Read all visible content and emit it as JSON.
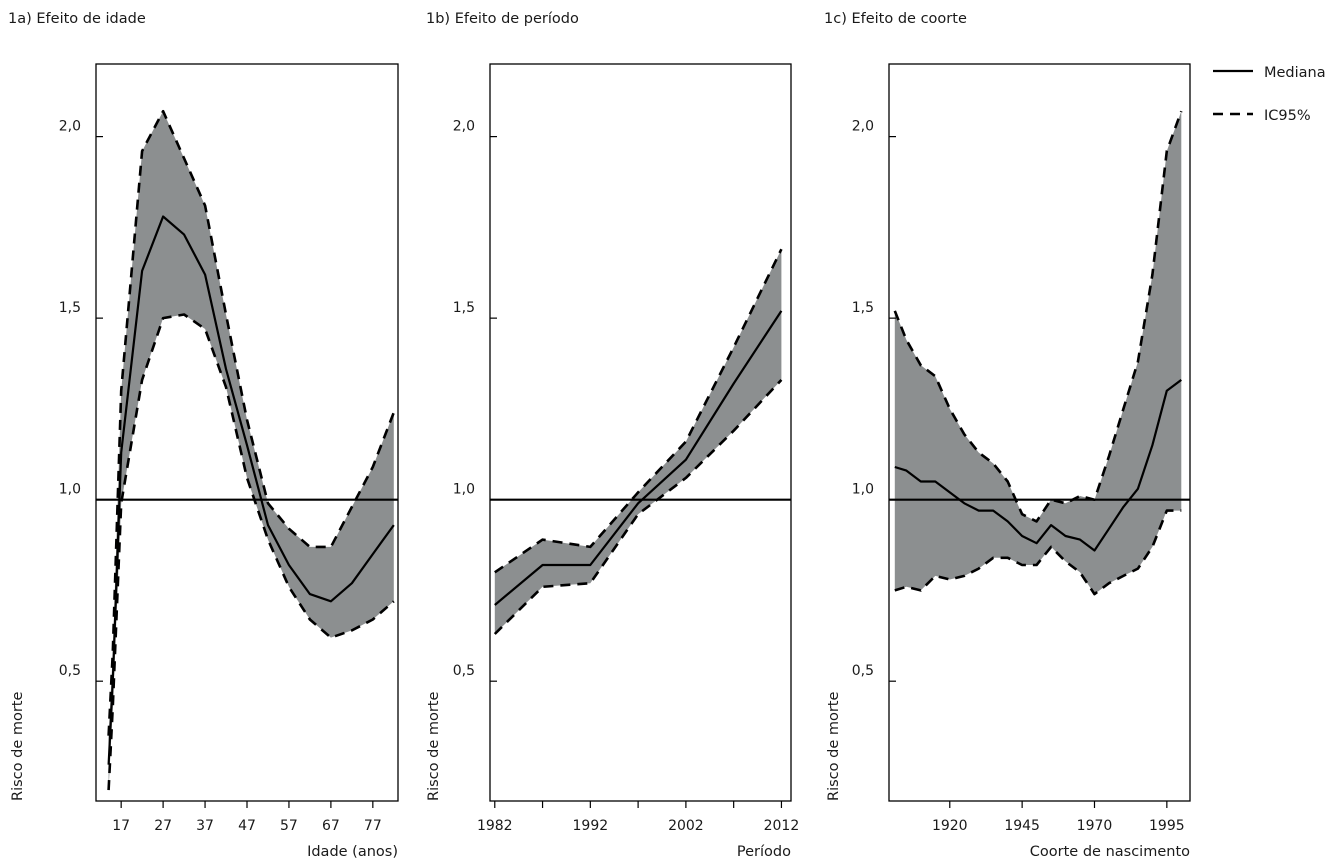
{
  "legend": {
    "median_label": "Mediana",
    "ci_label": "IC95%"
  },
  "colors": {
    "band": "#8c8f90",
    "line": "#000000",
    "background": "#ffffff"
  },
  "chart_data": [
    {
      "type": "line",
      "title": "1a) Efeito de idade",
      "xlabel": "Idade (anos)",
      "ylabel": "Risco de morte",
      "xlim": [
        11,
        83
      ],
      "ylim": [
        0.17,
        2.2
      ],
      "xticks": [
        17,
        27,
        37,
        47,
        57,
        67,
        77
      ],
      "xticklabels": [
        "17",
        "27",
        "37",
        "47",
        "57",
        "67",
        "77"
      ],
      "yticks": [
        0.5,
        1.0,
        1.5,
        2.0
      ],
      "yticklabels": [
        "0,5",
        "1,0",
        "1,5",
        "2,0"
      ],
      "reference_line": 1.0,
      "series": [
        {
          "name": "Mediana",
          "style": "solid",
          "x": [
            14,
            15,
            17,
            22,
            27,
            32,
            37,
            42,
            47,
            52,
            57,
            62,
            67,
            72,
            77,
            82
          ],
          "y": [
            0.27,
            0.5,
            1.13,
            1.63,
            1.78,
            1.73,
            1.62,
            1.36,
            1.15,
            0.93,
            0.82,
            0.74,
            0.72,
            0.77,
            0.85,
            0.93
          ]
        },
        {
          "name": "IC95%",
          "style": "dashed",
          "x": [
            14,
            15,
            17,
            22,
            27,
            32,
            37,
            42,
            47,
            52,
            57,
            62,
            67,
            72,
            77,
            82
          ],
          "y": [
            0.35,
            0.58,
            1.3,
            1.96,
            2.07,
            1.94,
            1.81,
            1.51,
            1.22,
            0.99,
            0.92,
            0.87,
            0.87,
            0.98,
            1.09,
            1.24
          ]
        },
        {
          "name": "IC95%",
          "style": "dashed",
          "x": [
            14,
            15,
            17,
            22,
            27,
            32,
            37,
            42,
            47,
            52,
            57,
            62,
            67,
            72,
            77,
            82
          ],
          "y": [
            0.2,
            0.43,
            0.99,
            1.33,
            1.5,
            1.51,
            1.47,
            1.31,
            1.06,
            0.89,
            0.76,
            0.67,
            0.62,
            0.64,
            0.67,
            0.72
          ]
        }
      ]
    },
    {
      "type": "line",
      "title": "1b) Efeito de período",
      "xlabel": "Período",
      "ylabel": "Risco de morte",
      "xlim": [
        1981.5,
        2013
      ],
      "ylim": [
        0.17,
        2.2
      ],
      "xticks": [
        1982,
        1987,
        1992,
        1997,
        2002,
        2007,
        2012
      ],
      "xticklabels": [
        "1982",
        "",
        "1992",
        "",
        "2002",
        "",
        "2012"
      ],
      "yticks": [
        0.5,
        1.0,
        1.5,
        2.0
      ],
      "yticklabels": [
        "0,5",
        "1,0",
        "1,5",
        "2,0"
      ],
      "reference_line": 1.0,
      "series": [
        {
          "name": "Mediana",
          "style": "solid",
          "x": [
            1982,
            1987,
            1992,
            1997,
            2002,
            2007,
            2012
          ],
          "y": [
            0.71,
            0.82,
            0.82,
            0.99,
            1.11,
            1.32,
            1.52
          ]
        },
        {
          "name": "IC95%",
          "style": "dashed",
          "x": [
            1982,
            1987,
            1992,
            1997,
            2002,
            2007,
            2012
          ],
          "y": [
            0.8,
            0.89,
            0.87,
            1.02,
            1.16,
            1.42,
            1.69
          ]
        },
        {
          "name": "IC95%",
          "style": "dashed",
          "x": [
            1982,
            1987,
            1992,
            1997,
            2002,
            2007,
            2012
          ],
          "y": [
            0.63,
            0.76,
            0.77,
            0.96,
            1.06,
            1.19,
            1.33
          ]
        }
      ]
    },
    {
      "type": "line",
      "title": "1c) Efeito de coorte",
      "xlabel": "Coorte de nascimento",
      "ylabel": "Risco de morte",
      "xlim": [
        1899,
        2003
      ],
      "ylim": [
        0.17,
        2.2
      ],
      "xticks": [
        1920,
        1945,
        1970,
        1995
      ],
      "xticklabels": [
        "1920",
        "1945",
        "1970",
        "1995"
      ],
      "yticks": [
        0.5,
        1.0,
        1.5,
        2.0
      ],
      "yticklabels": [
        "0,5",
        "1,0",
        "1,5",
        "2,0"
      ],
      "reference_line": 1.0,
      "series": [
        {
          "name": "Mediana",
          "style": "solid",
          "x": [
            1901,
            1905,
            1910,
            1915,
            1920,
            1925,
            1930,
            1935,
            1940,
            1945,
            1950,
            1955,
            1960,
            1965,
            1970,
            1975,
            1980,
            1985,
            1990,
            1995,
            2000
          ],
          "y": [
            1.09,
            1.08,
            1.05,
            1.05,
            1.02,
            0.99,
            0.97,
            0.97,
            0.94,
            0.9,
            0.88,
            0.93,
            0.9,
            0.89,
            0.86,
            0.92,
            0.98,
            1.03,
            1.15,
            1.3,
            1.33
          ]
        },
        {
          "name": "IC95%",
          "style": "dashed",
          "x": [
            1901,
            1905,
            1910,
            1915,
            1920,
            1925,
            1930,
            1935,
            1940,
            1945,
            1950,
            1955,
            1960,
            1965,
            1970,
            1975,
            1980,
            1985,
            1990,
            1995,
            2000
          ],
          "y": [
            1.52,
            1.44,
            1.37,
            1.34,
            1.25,
            1.18,
            1.13,
            1.1,
            1.05,
            0.96,
            0.94,
            1.0,
            0.99,
            1.01,
            1.0,
            1.12,
            1.25,
            1.38,
            1.62,
            1.96,
            2.07
          ]
        },
        {
          "name": "IC95%",
          "style": "dashed",
          "x": [
            1901,
            1905,
            1910,
            1915,
            1920,
            1925,
            1930,
            1935,
            1940,
            1945,
            1950,
            1955,
            1960,
            1965,
            1970,
            1975,
            1980,
            1985,
            1990,
            1995,
            2000
          ],
          "y": [
            0.75,
            0.76,
            0.75,
            0.79,
            0.78,
            0.79,
            0.81,
            0.84,
            0.84,
            0.82,
            0.82,
            0.87,
            0.83,
            0.8,
            0.74,
            0.77,
            0.79,
            0.81,
            0.87,
            0.97,
            0.97
          ]
        }
      ]
    }
  ]
}
